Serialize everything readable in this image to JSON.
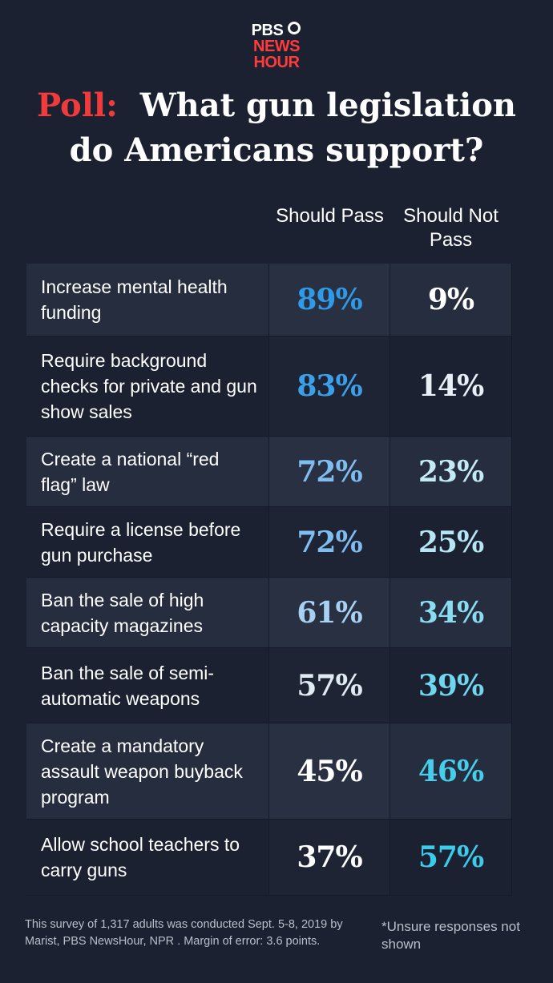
{
  "header": {
    "logo": [
      "PBS",
      "NEWS",
      "HOUR"
    ],
    "title_prefix": "Poll:",
    "title": "What gun legislation do Americans support?"
  },
  "table": {
    "columns": [
      "Should Pass",
      "Should Not Pass"
    ],
    "rows": [
      {
        "label": "Increase mental health funding",
        "pass": "89%",
        "not_pass": "9%",
        "pass_color": "#2f9ae8",
        "not_pass_color": "#ffffff"
      },
      {
        "label": "Require background checks for private and gun show sales",
        "pass": "83%",
        "not_pass": "14%",
        "pass_color": "#3aa0ea",
        "not_pass_color": "#e6f0f5"
      },
      {
        "label": "Create a national “red flag” law",
        "pass": "72%",
        "not_pass": "23%",
        "pass_color": "#7fbdf0",
        "not_pass_color": "#c3eaf5"
      },
      {
        "label": "Require a license before gun purchase",
        "pass": "72%",
        "not_pass": "25%",
        "pass_color": "#7fbdf0",
        "not_pass_color": "#b5e6f4"
      },
      {
        "label": "Ban the sale of high capacity magazines",
        "pass": "61%",
        "not_pass": "34%",
        "pass_color": "#a8d0f3",
        "not_pass_color": "#8adcf0"
      },
      {
        "label": "Ban the sale of semi-automatic weapons",
        "pass": "57%",
        "not_pass": "39%",
        "pass_color": "#e0eaf3",
        "not_pass_color": "#6fd6ee"
      },
      {
        "label": "Create a mandatory assault weapon buyback program",
        "pass": "45%",
        "not_pass": "46%",
        "pass_color": "#ffffff",
        "not_pass_color": "#45cdeb"
      },
      {
        "label": "Allow school teachers to carry guns",
        "pass": "37%",
        "not_pass": "57%",
        "pass_color": "#ffffff",
        "not_pass_color": "#3ccbea"
      }
    ]
  },
  "footer": {
    "source": "This survey of 1,317 adults was conducted Sept. 5-8, 2019 by Marist, PBS NewsHour, NPR . Margin of error: 3.6  points.",
    "note": "*Unsure responses not shown"
  }
}
